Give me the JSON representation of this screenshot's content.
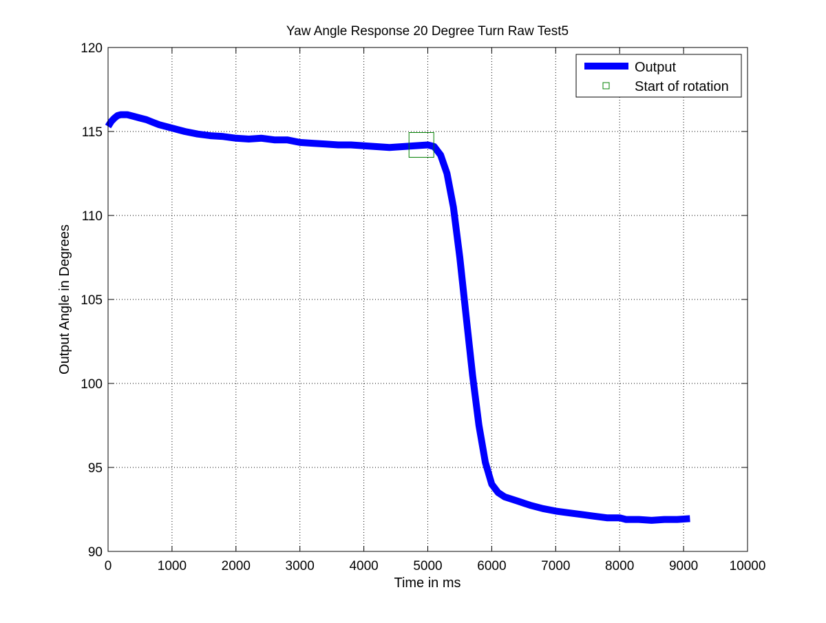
{
  "chart_data": {
    "type": "line",
    "title": "Yaw Angle Response 20 Degree Turn Raw Test5",
    "xlabel": "Time in ms",
    "ylabel": "Output Angle in Degrees",
    "xlim": [
      0,
      10000
    ],
    "ylim": [
      90,
      120
    ],
    "xticks": [
      0,
      1000,
      2000,
      3000,
      4000,
      5000,
      6000,
      7000,
      8000,
      9000,
      10000
    ],
    "yticks": [
      90,
      95,
      100,
      105,
      110,
      115,
      120
    ],
    "grid": true,
    "legend_position": "top-right",
    "series": [
      {
        "name": "Output",
        "color": "#0000ff",
        "marker": "line",
        "x": [
          0,
          50,
          100,
          150,
          200,
          300,
          400,
          500,
          600,
          700,
          800,
          1000,
          1200,
          1400,
          1600,
          1800,
          2000,
          2200,
          2400,
          2600,
          2800,
          3000,
          3200,
          3400,
          3600,
          3800,
          4000,
          4200,
          4400,
          4600,
          4800,
          5000,
          5100,
          5200,
          5300,
          5400,
          5500,
          5600,
          5700,
          5800,
          5900,
          6000,
          6100,
          6200,
          6400,
          6600,
          6800,
          7000,
          7200,
          7400,
          7600,
          7800,
          8000,
          8100,
          8300,
          8500,
          8700,
          8900,
          9100
        ],
        "y": [
          115.3,
          115.6,
          115.8,
          115.95,
          116.0,
          116.0,
          115.9,
          115.8,
          115.7,
          115.55,
          115.4,
          115.2,
          115.0,
          114.85,
          114.75,
          114.7,
          114.6,
          114.55,
          114.6,
          114.5,
          114.5,
          114.35,
          114.3,
          114.25,
          114.2,
          114.2,
          114.15,
          114.1,
          114.05,
          114.1,
          114.15,
          114.2,
          114.1,
          113.6,
          112.5,
          110.5,
          107.5,
          104.0,
          100.5,
          97.5,
          95.3,
          94.0,
          93.5,
          93.25,
          93.0,
          92.75,
          92.55,
          92.4,
          92.3,
          92.2,
          92.1,
          92.0,
          92.0,
          91.9,
          91.9,
          91.85,
          91.9,
          91.9,
          91.95
        ]
      },
      {
        "name": "Start of rotation",
        "color": "#008000",
        "marker": "square",
        "x": [
          4900
        ],
        "y": [
          114.2
        ]
      }
    ]
  }
}
